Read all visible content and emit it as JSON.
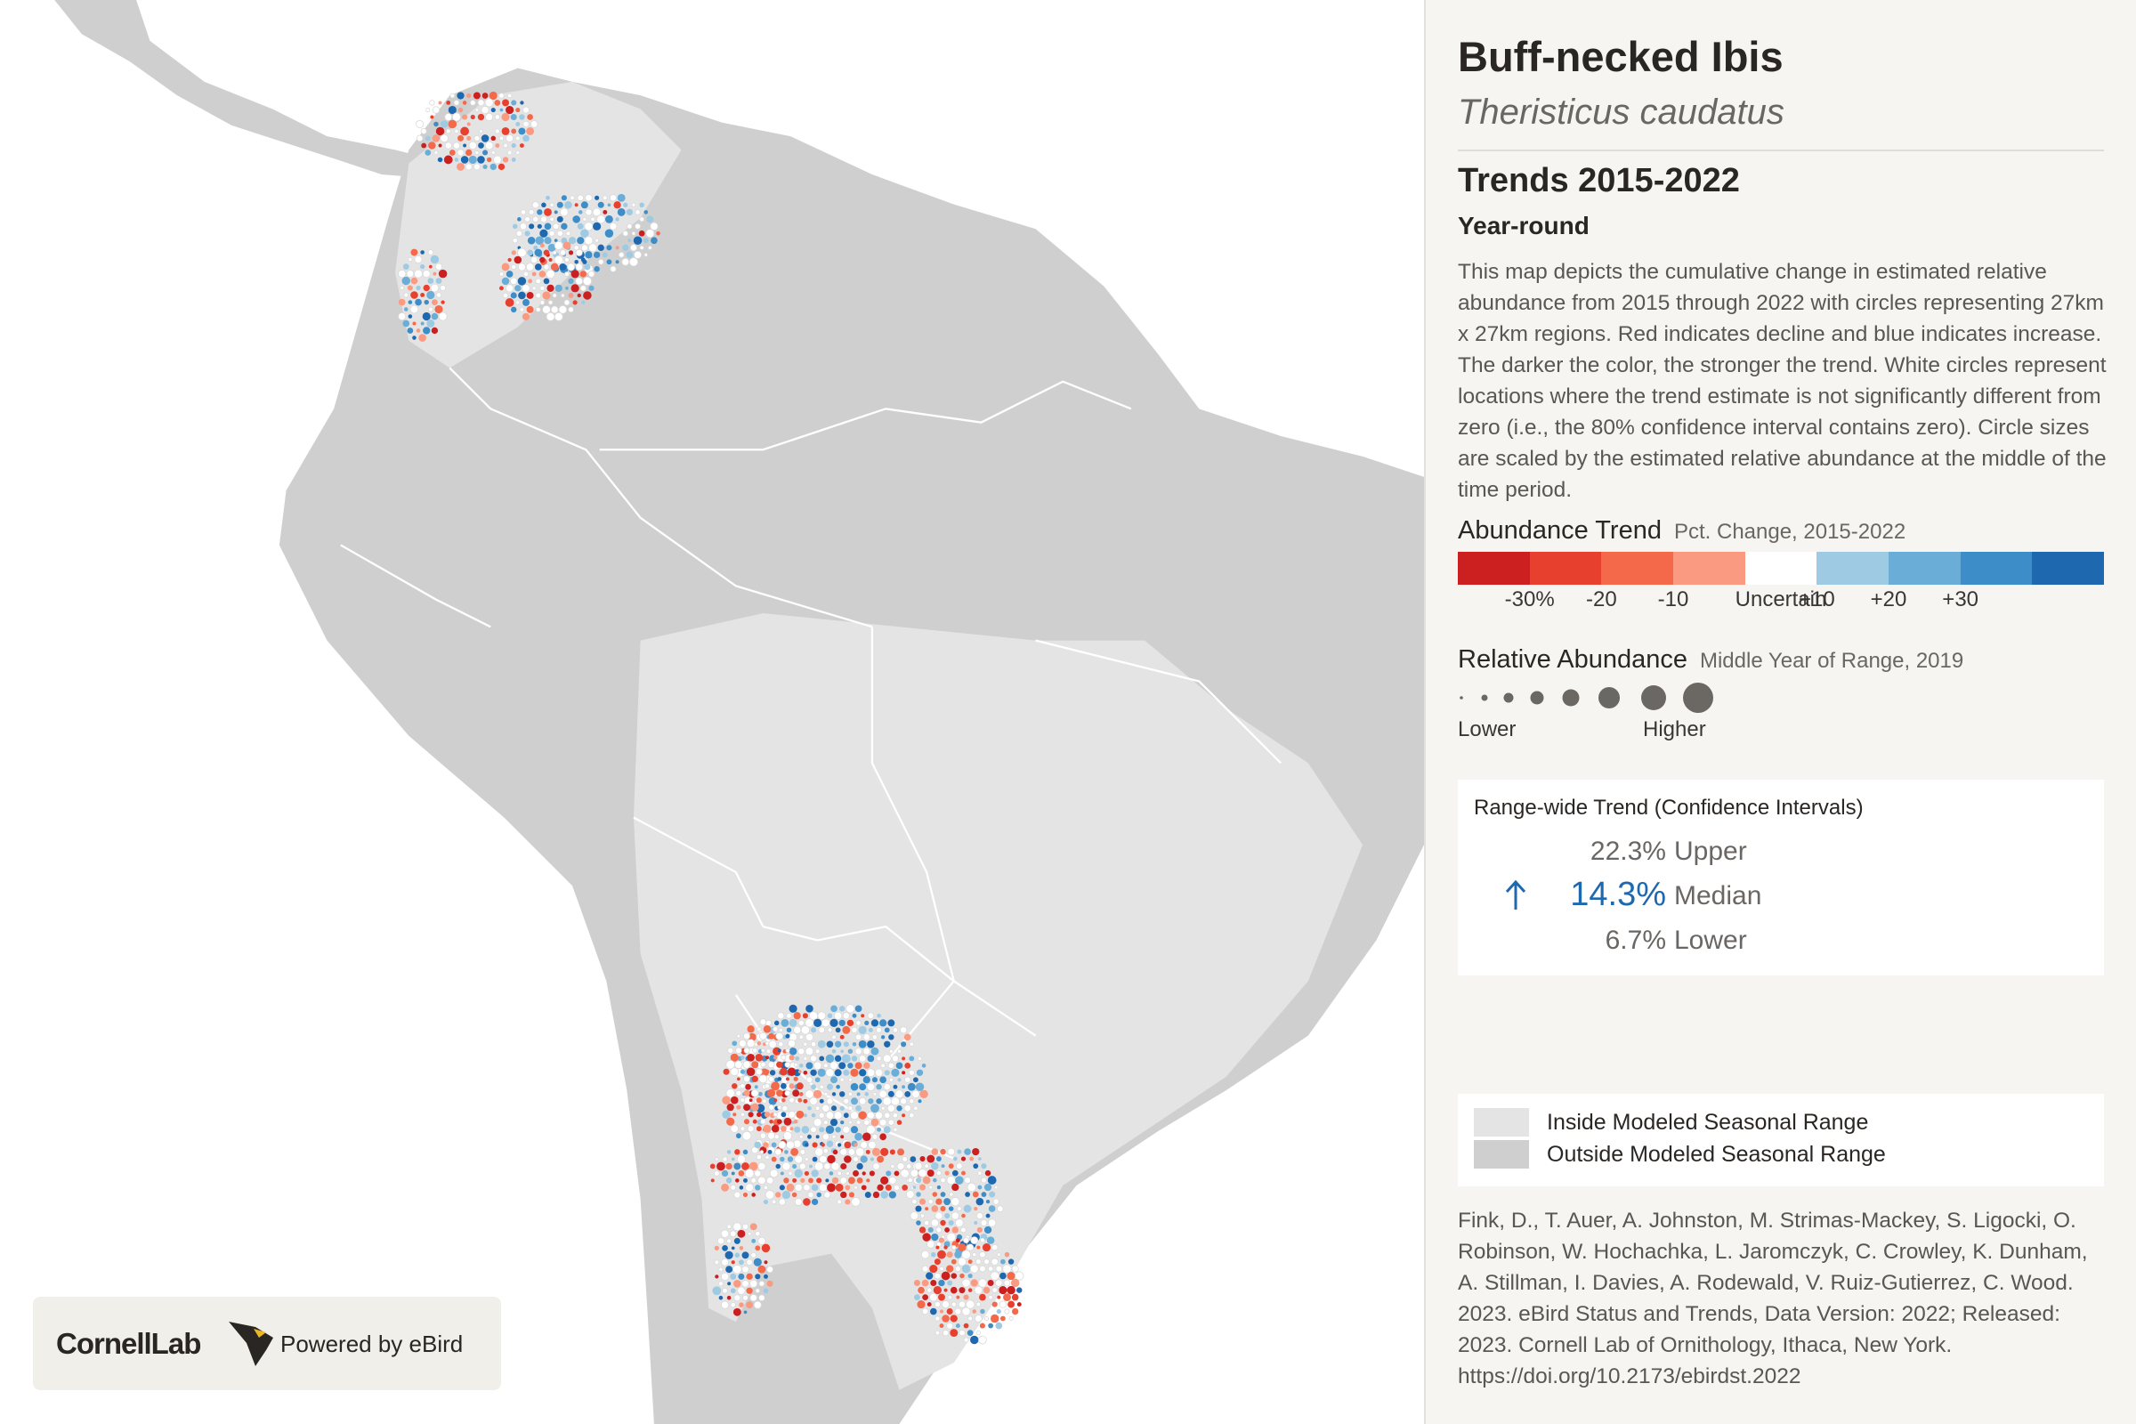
{
  "header": {
    "title": "Buff-necked Ibis",
    "scientific_name": "Theristicus caudatus"
  },
  "section": {
    "title": "Trends 2015-2022",
    "season": "Year-round",
    "description": "This map depicts the cumulative change in estimated relative abundance from 2015 through 2022 with circles representing 27km x 27km regions. Red indicates decline and blue indicates increase. The darker the color, the stronger the trend. White circles represent locations where the trend estimate is not significantly different from zero (i.e., the 80% confidence interval contains zero). Circle sizes are scaled by the estimated relative abundance at the middle of the time period."
  },
  "abundance_trend": {
    "title": "Abundance Trend",
    "subtitle": "Pct. Change, 2015-2022",
    "colors": [
      "#cc1f1f",
      "#e8402f",
      "#f4694a",
      "#fa9a80",
      "#ffffff",
      "#9ecae4",
      "#6aaed8",
      "#3d8dc8",
      "#1e68b0"
    ],
    "labels": [
      "-30%",
      "-20",
      "-10",
      "Uncertain",
      "+10",
      "+20",
      "+30"
    ]
  },
  "relative_abundance": {
    "title": "Relative Abundance",
    "subtitle": "Middle Year of Range, 2019",
    "low_label": "Lower",
    "high_label": "Higher"
  },
  "range_wide_trend": {
    "title": "Range-wide Trend (Confidence Intervals)",
    "upper": "22.3%",
    "upper_label": "Upper",
    "median": "14.3%",
    "median_label": "Median",
    "lower": "6.7%",
    "lower_label": "Lower"
  },
  "range_legend": {
    "inside": "Inside Modeled Seasonal Range",
    "outside": "Outside Modeled Seasonal Range"
  },
  "citation": "Fink, D., T. Auer, A. Johnston, M. Strimas-Mackey, S. Ligocki, O. Robinson, W. Hochachka, L. Jaromczyk, C. Crowley, K. Dunham, A. Stillman, I. Davies, A. Rodewald, V. Ruiz-Gutierrez, C. Wood. 2023. eBird Status and Trends, Data Version: 2022; Released: 2023. Cornell Lab of Ornithology, Ithaca, New York. https://doi.org/10.2173/ebirdst.2022",
  "branding": {
    "logo": "CornellLab",
    "powered_by": "Powered by eBird"
  }
}
